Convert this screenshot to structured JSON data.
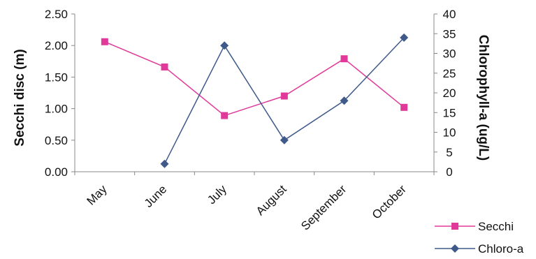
{
  "chart_data": {
    "type": "line",
    "categories": [
      "May",
      "June",
      "July",
      "August",
      "September",
      "October"
    ],
    "y_left": {
      "label": "Secchi disc (m)",
      "range": [
        0,
        2.5
      ],
      "ticks": [
        "0.00",
        "0.50",
        "1.00",
        "1.50",
        "2.00",
        "2.50"
      ]
    },
    "y_right": {
      "label": "Chlorophyll-a (ug/L)",
      "range": [
        0,
        40
      ],
      "ticks": [
        "0",
        "5",
        "10",
        "15",
        "20",
        "25",
        "30",
        "35",
        "40"
      ]
    },
    "series": [
      {
        "name": "Secchi",
        "axis": "left",
        "color": "#e0399a",
        "marker": "square",
        "values": [
          2.06,
          1.66,
          0.89,
          1.2,
          1.79,
          1.02
        ]
      },
      {
        "name": "Chloro-a",
        "axis": "right",
        "color": "#3f5a8a",
        "marker": "diamond",
        "values": [
          null,
          2,
          32,
          8,
          18,
          34
        ]
      }
    ],
    "grid": false,
    "legend_position": "bottom-right"
  }
}
